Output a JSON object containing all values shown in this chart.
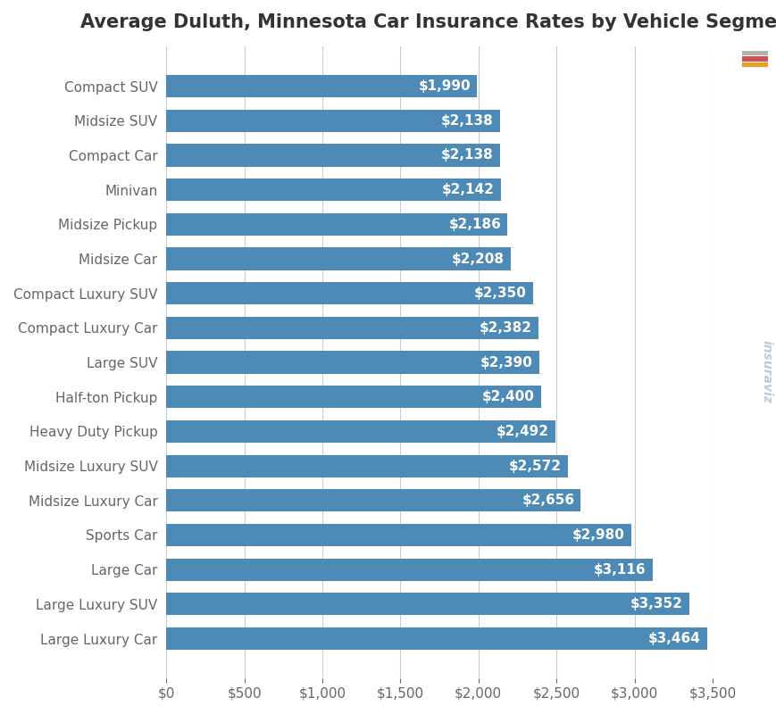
{
  "title": "Average Duluth, Minnesota Car Insurance Rates by Vehicle Segment",
  "categories": [
    "Compact SUV",
    "Midsize SUV",
    "Compact Car",
    "Minivan",
    "Midsize Pickup",
    "Midsize Car",
    "Compact Luxury SUV",
    "Compact Luxury Car",
    "Large SUV",
    "Half-ton Pickup",
    "Heavy Duty Pickup",
    "Midsize Luxury SUV",
    "Midsize Luxury Car",
    "Sports Car",
    "Large Car",
    "Large Luxury SUV",
    "Large Luxury Car"
  ],
  "values": [
    1990,
    2138,
    2138,
    2142,
    2186,
    2208,
    2350,
    2382,
    2390,
    2400,
    2492,
    2572,
    2656,
    2980,
    3116,
    3352,
    3464
  ],
  "bar_color": "#4d8ab5",
  "label_color": "#ffffff",
  "background_color": "#ffffff",
  "grid_color": "#cccccc",
  "title_color": "#333333",
  "tick_label_color": "#666666",
  "xlim": [
    0,
    3500
  ],
  "xticks": [
    0,
    500,
    1000,
    1500,
    2000,
    2500,
    3000,
    3500
  ],
  "title_fontsize": 15,
  "label_fontsize": 11,
  "tick_fontsize": 11,
  "bar_height": 0.65,
  "figsize": [
    8.7,
    8.0
  ],
  "dpi": 100
}
